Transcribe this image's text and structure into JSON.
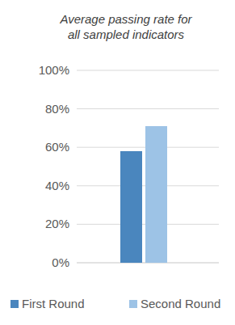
{
  "chart_data": {
    "type": "bar",
    "title": "Average passing rate for all sampled indicators",
    "categories": [
      null
    ],
    "series": [
      {
        "name": "First Round",
        "color": "#4a86be",
        "values": [
          58
        ]
      },
      {
        "name": "Second Round",
        "color": "#9dc3e6",
        "values": [
          71
        ]
      }
    ],
    "ylim": [
      0,
      100
    ],
    "yticks": [
      {
        "value": 0,
        "label": "0%"
      },
      {
        "value": 20,
        "label": "20%"
      },
      {
        "value": 40,
        "label": "40%"
      },
      {
        "value": 60,
        "label": "60%"
      },
      {
        "value": 80,
        "label": "80%"
      },
      {
        "value": 100,
        "label": "100%"
      }
    ],
    "grid": true,
    "legend": "bottom"
  }
}
